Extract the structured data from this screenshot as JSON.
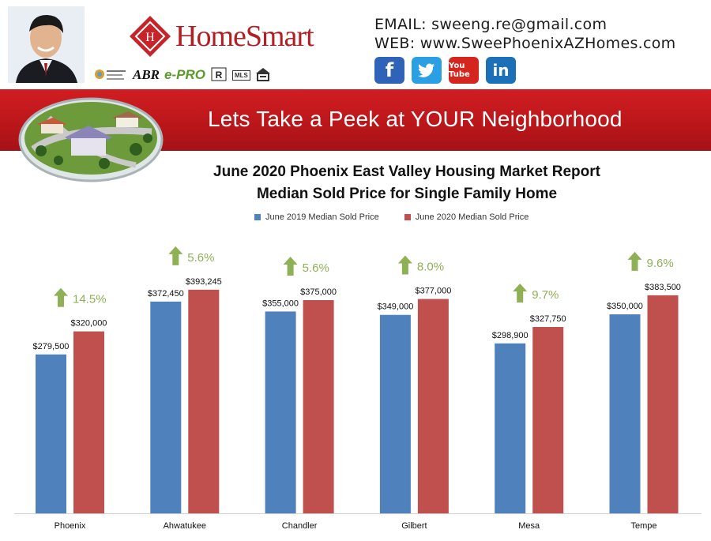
{
  "header": {
    "brand_logo_text": "HomeSmart",
    "email_line": "EMAIL: sweeng.re@gmail.com",
    "web_line": "WEB: www.SweePhoenixAZHomes.com",
    "badges": [
      "ABR",
      "e-PRO",
      "MLS"
    ],
    "social": [
      {
        "name": "facebook",
        "glyph": "f"
      },
      {
        "name": "twitter",
        "glyph": "🐦"
      },
      {
        "name": "youtube",
        "glyph": "You Tube"
      },
      {
        "name": "linkedin",
        "glyph": "in"
      }
    ]
  },
  "banner": {
    "text": "Lets Take a Peek at YOUR Neighborhood",
    "color": "#c8191d"
  },
  "chart_data": {
    "type": "bar",
    "title": "June 2020 Phoenix East Valley Housing Market Report",
    "subtitle": "Median Sold Price for Single Family Home",
    "categories": [
      "Phoenix",
      "Ahwatukee",
      "Chandler",
      "Gilbert",
      "Mesa",
      "Tempe"
    ],
    "series": [
      {
        "name": "June 2019 Median Sold Price",
        "color": "#4f81bd",
        "values": [
          279500,
          372450,
          355000,
          349000,
          298900,
          350000
        ],
        "labels": [
          "$279,500",
          "$372,450",
          "$355,000",
          "$349,000",
          "$298,900",
          "$350,000"
        ]
      },
      {
        "name": "June 2020 Median Sold Price",
        "color": "#c0504d",
        "values": [
          320000,
          393245,
          375000,
          377000,
          327750,
          383500
        ],
        "labels": [
          "$320,000",
          "$393,245",
          "$375,000",
          "$377,000",
          "$327,750",
          "$383,500"
        ]
      }
    ],
    "annotations": [
      "14.5%",
      "5.6%",
      "5.6%",
      "8.0%",
      "9.7%",
      "9.6%"
    ],
    "annotation_color": "#8fb155",
    "ylim": [
      0,
      400000
    ],
    "legend_position": "top",
    "grid": false
  }
}
